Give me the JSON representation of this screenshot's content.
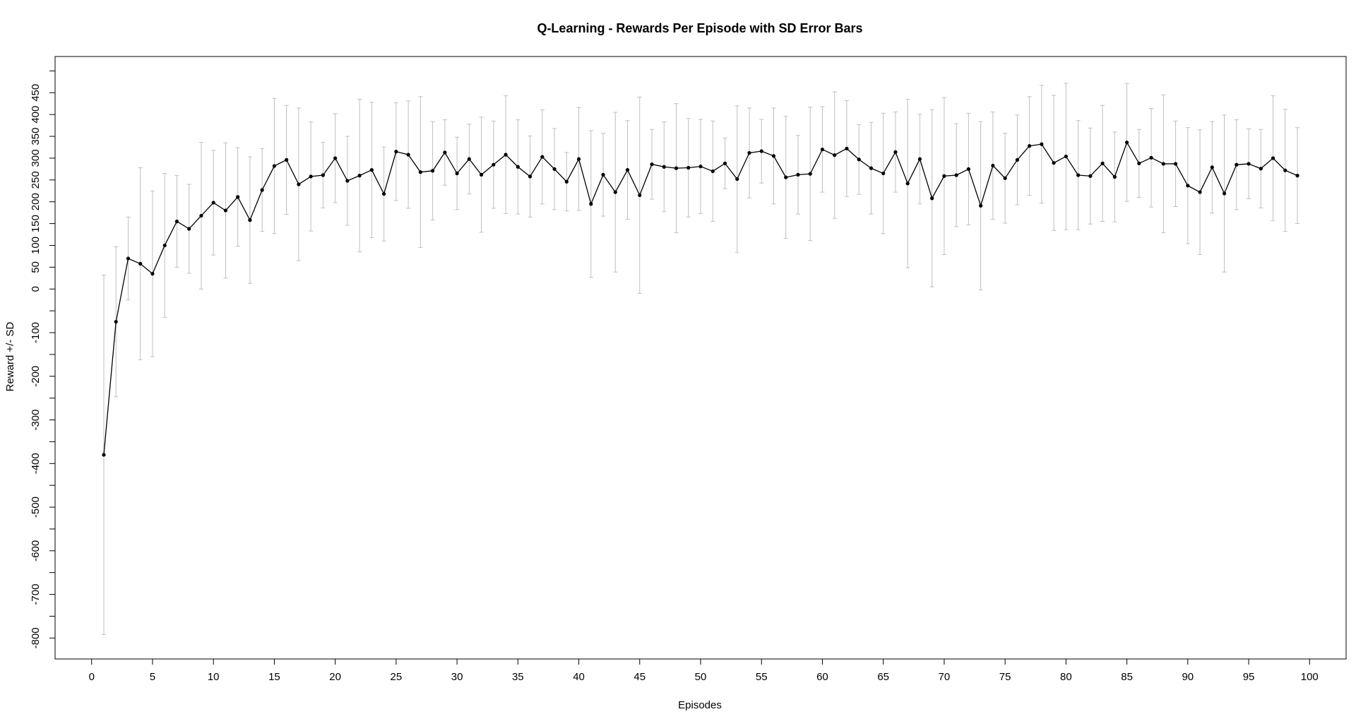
{
  "chart_data": {
    "type": "line",
    "title": "Q-Learning - Rewards Per Episode with SD Error Bars",
    "xlabel": "Episodes",
    "ylabel": "Reward +/- SD",
    "xlim": [
      -3,
      103
    ],
    "ylim": [
      -848,
      533
    ],
    "x_ticks": [
      0,
      5,
      10,
      15,
      20,
      25,
      30,
      35,
      40,
      45,
      50,
      55,
      60,
      65,
      70,
      75,
      80,
      85,
      90,
      95,
      100
    ],
    "y_ticks": [
      -800,
      -700,
      -600,
      -500,
      -400,
      -300,
      -200,
      -100,
      0,
      50,
      100,
      150,
      200,
      250,
      300,
      350,
      400,
      450
    ],
    "y_minor_ticks": [
      -750,
      -650,
      -550,
      -450,
      -350,
      -250,
      -150,
      -50,
      500
    ],
    "grid": false,
    "legend": "none",
    "colors": {
      "line": "#000000",
      "points": "#000000",
      "error_bars": "#bfbfbf",
      "frame": "#000000"
    },
    "series": [
      {
        "x": [
          1,
          2,
          3,
          4,
          5,
          6,
          7,
          8,
          9,
          10,
          11,
          12,
          13,
          14,
          15,
          16,
          17,
          18,
          19,
          20,
          21,
          22,
          23,
          24,
          25,
          26,
          27,
          28,
          29,
          30,
          31,
          32,
          33,
          34,
          35,
          36,
          37,
          38,
          39,
          40,
          41,
          42,
          43,
          44,
          45,
          46,
          47,
          48,
          49,
          50,
          51,
          52,
          53,
          54,
          55,
          56,
          57,
          58,
          59,
          60,
          61,
          62,
          63,
          64,
          65,
          66,
          67,
          68,
          69,
          70,
          71,
          72,
          73,
          74,
          75,
          76,
          77,
          78,
          79,
          80,
          81,
          82,
          83,
          84,
          85,
          86,
          87,
          88,
          89,
          90,
          91,
          92,
          93,
          94,
          95,
          96,
          97,
          98,
          99
        ],
        "y": [
          -380,
          -75,
          70,
          58,
          35,
          100,
          155,
          138,
          168,
          198,
          180,
          211,
          158,
          227,
          282,
          296,
          240,
          258,
          261,
          300,
          248,
          260,
          273,
          218,
          315,
          308,
          268,
          271,
          313,
          265,
          298,
          262,
          285,
          308,
          280,
          258,
          303,
          275,
          246,
          298,
          195,
          262,
          222,
          273,
          215,
          286,
          280,
          277,
          278,
          281,
          270,
          288,
          252,
          312,
          316,
          305,
          256,
          262,
          264,
          320,
          307,
          322,
          297,
          277,
          265,
          314,
          242,
          298,
          208,
          259,
          261,
          275,
          191,
          283,
          254,
          296,
          328,
          332,
          289,
          304,
          261,
          259,
          288,
          257,
          336,
          288,
          301,
          287,
          287,
          237,
          222,
          279,
          219,
          285,
          287,
          276,
          300,
          272,
          260
        ],
        "sd": [
          412,
          172,
          95,
          220,
          190,
          165,
          105,
          102,
          168,
          120,
          155,
          113,
          145,
          95,
          155,
          125,
          175,
          125,
          75,
          102,
          102,
          175,
          155,
          108,
          112,
          123,
          173,
          113,
          75,
          83,
          80,
          132,
          100,
          135,
          108,
          93,
          108,
          93,
          67,
          118,
          168,
          95,
          183,
          113,
          225,
          80,
          103,
          148,
          113,
          108,
          115,
          58,
          168,
          103,
          73,
          110,
          140,
          90,
          153,
          98,
          145,
          110,
          80,
          105,
          138,
          92,
          193,
          103,
          203,
          180,
          118,
          128,
          193,
          123,
          103,
          103,
          113,
          135,
          155,
          168,
          125,
          110,
          133,
          103,
          135,
          78,
          113,
          158,
          98,
          133,
          143,
          105,
          180,
          103,
          80,
          90,
          143,
          140,
          110
        ]
      }
    ]
  }
}
